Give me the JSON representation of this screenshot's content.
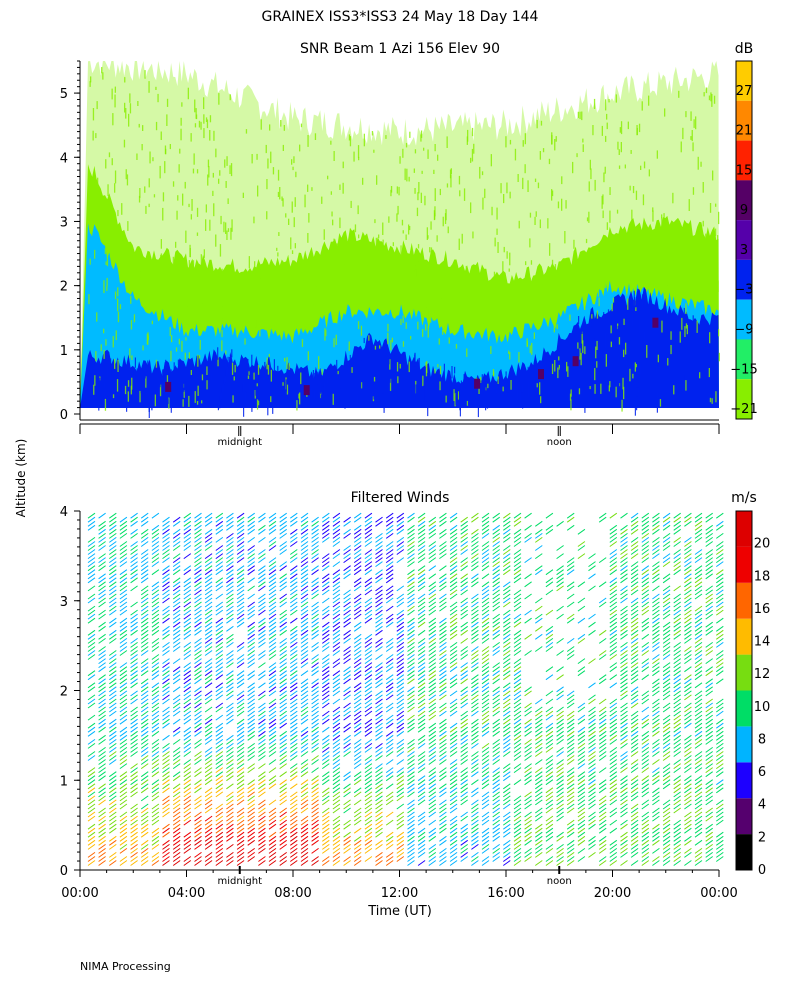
{
  "header": {
    "title": "GRAINEX ISS3*ISS3  24 May 18 Day 144",
    "footer": "NIMA Processing",
    "shared_ylabel": "Altitude (km)"
  },
  "chart_data": [
    {
      "type": "heatmap",
      "title": "SNR Beam 1 Azi 156 Elev 90",
      "ylabel": "Altitude (km)",
      "ylim": [
        0,
        5.5
      ],
      "yticks": [
        "0",
        "1",
        "2",
        "3",
        "4",
        "5"
      ],
      "xlim": [
        "00:00",
        "24:00"
      ],
      "xmarkers": [
        {
          "label": "midnight",
          "time": "06:00"
        },
        {
          "label": "noon",
          "time": "18:00"
        }
      ],
      "colorbar": {
        "unit": "dB",
        "tick_labels": [
          "27",
          "21",
          "15",
          "9",
          "3",
          "−3",
          "−9",
          "−15",
          "−21"
        ],
        "colors": [
          "#ffcc00",
          "#ff8800",
          "#ff2200",
          "#550066",
          "#5500aa",
          "#0022ee",
          "#00bbff",
          "#22ee66",
          "#88ee00"
        ]
      },
      "layers": [
        {
          "name": "dark blue layer",
          "times": [
            1.0,
            3.0,
            5.0,
            7.0,
            9.0,
            11.0,
            13.0,
            15.0,
            17.0,
            19.0,
            21.0,
            23.0
          ],
          "top_km": [
            0.9,
            0.7,
            0.9,
            0.8,
            0.6,
            1.2,
            0.7,
            0.5,
            0.8,
            1.5,
            1.9,
            1.5
          ]
        },
        {
          "name": "light blue layer",
          "times": [
            0.5,
            2.0,
            4.0,
            6.0,
            8.0,
            10.0,
            12.0,
            14.0,
            16.0,
            18.0,
            20.0,
            22.0,
            24.0
          ],
          "top_km": [
            2.9,
            1.8,
            1.3,
            1.3,
            1.2,
            1.6,
            1.6,
            1.3,
            1.2,
            1.5,
            2.0,
            1.8,
            1.6
          ]
        },
        {
          "name": "green layer",
          "times": [
            0.5,
            2.0,
            4.0,
            6.0,
            8.0,
            10.0,
            12.0,
            14.0,
            16.0,
            18.0,
            20.0,
            22.0,
            24.0
          ],
          "top_km": [
            3.8,
            2.6,
            2.4,
            2.3,
            2.4,
            2.8,
            2.6,
            2.4,
            2.1,
            2.3,
            2.9,
            3.0,
            2.8
          ]
        },
        {
          "name": "sparse green echoes",
          "times": [
            0.5,
            4.0,
            8.0,
            12.0,
            16.0,
            20.0,
            24.0
          ],
          "top_km": [
            5.5,
            5.3,
            4.6,
            4.4,
            4.5,
            5.0,
            5.3
          ]
        }
      ]
    },
    {
      "type": "barbs",
      "title": "Filtered Winds",
      "xlabel": "Time (UT)",
      "ylabel": "Altitude (km)",
      "xlim": [
        0,
        24
      ],
      "ylim": [
        0,
        4
      ],
      "xticks": [
        "00:00",
        "04:00",
        "08:00",
        "12:00",
        "16:00",
        "20:00",
        "00:00"
      ],
      "yticks": [
        "0",
        "1",
        "2",
        "3",
        "4"
      ],
      "xmarkers": [
        {
          "label": "midnight",
          "time": "06:00"
        },
        {
          "label": "noon",
          "time": "18:00"
        }
      ],
      "colorbar": {
        "unit": "m/s",
        "tick_labels": [
          "20",
          "18",
          "16",
          "14",
          "12",
          "10",
          "8",
          "6",
          "4",
          "2",
          "0"
        ],
        "colors": [
          "#000000",
          "#55006e",
          "#1d00ff",
          "#00b4ff",
          "#00dd66",
          "#77dd11",
          "#ffbb00",
          "#ff6600",
          "#ee0000",
          "#dd0000"
        ]
      },
      "speed_profiles_m_s": [
        {
          "period": "00:00-03:00",
          "low_level_max": 14,
          "upper": 8
        },
        {
          "period": "03:00-09:00",
          "low_level_max": 20,
          "upper": 7
        },
        {
          "period": "09:00-12:00",
          "low_level_max": 15,
          "upper": 6
        },
        {
          "period": "12:00-16:00",
          "low_level_max": 7,
          "upper": 9
        },
        {
          "period": "16:00-24:00",
          "low_level_max": 10,
          "upper": 9
        }
      ]
    }
  ]
}
